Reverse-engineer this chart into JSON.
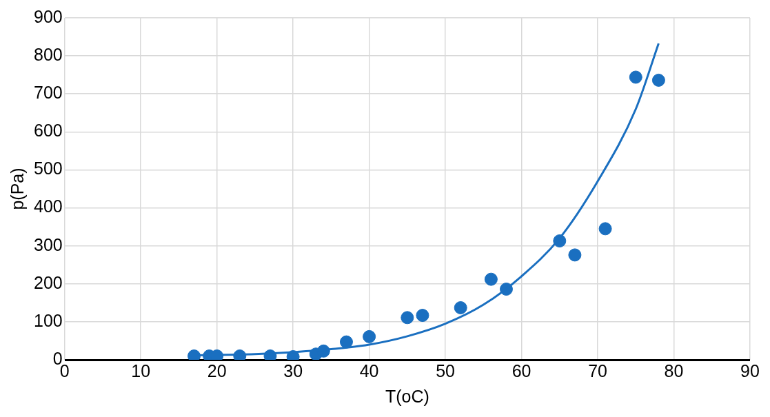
{
  "chart_data": {
    "type": "scatter",
    "xlabel": "T(oC)",
    "ylabel": "p(Pa)",
    "xlim": [
      0,
      90
    ],
    "xticks": [
      0,
      10,
      20,
      30,
      40,
      50,
      60,
      70,
      80,
      90
    ],
    "ylim": [
      0,
      900
    ],
    "yticks": [
      0,
      100,
      200,
      300,
      400,
      500,
      600,
      700,
      800,
      900
    ],
    "grid": true,
    "legend": false,
    "line_style": "solid",
    "series": [
      {
        "marker": "circle",
        "color": "#1a6fc0",
        "x": [
          17,
          19,
          20,
          23,
          27,
          30,
          33,
          34,
          37,
          40,
          45,
          47,
          52,
          56,
          58,
          65,
          67,
          71,
          75,
          78
        ],
        "values": [
          10,
          10,
          10,
          10,
          10,
          8,
          15,
          23,
          47,
          61,
          111,
          117,
          137,
          212,
          186,
          313,
          276,
          345,
          744,
          736
        ]
      },
      {
        "type": "line",
        "color": "#1a6fc0",
        "x": [
          17,
          25,
          30,
          35,
          40,
          45,
          50,
          55,
          60,
          65,
          70,
          75,
          78
        ],
        "values": [
          12,
          15,
          20,
          28,
          40,
          62,
          95,
          145,
          220,
          320,
          470,
          660,
          833
        ]
      }
    ]
  }
}
